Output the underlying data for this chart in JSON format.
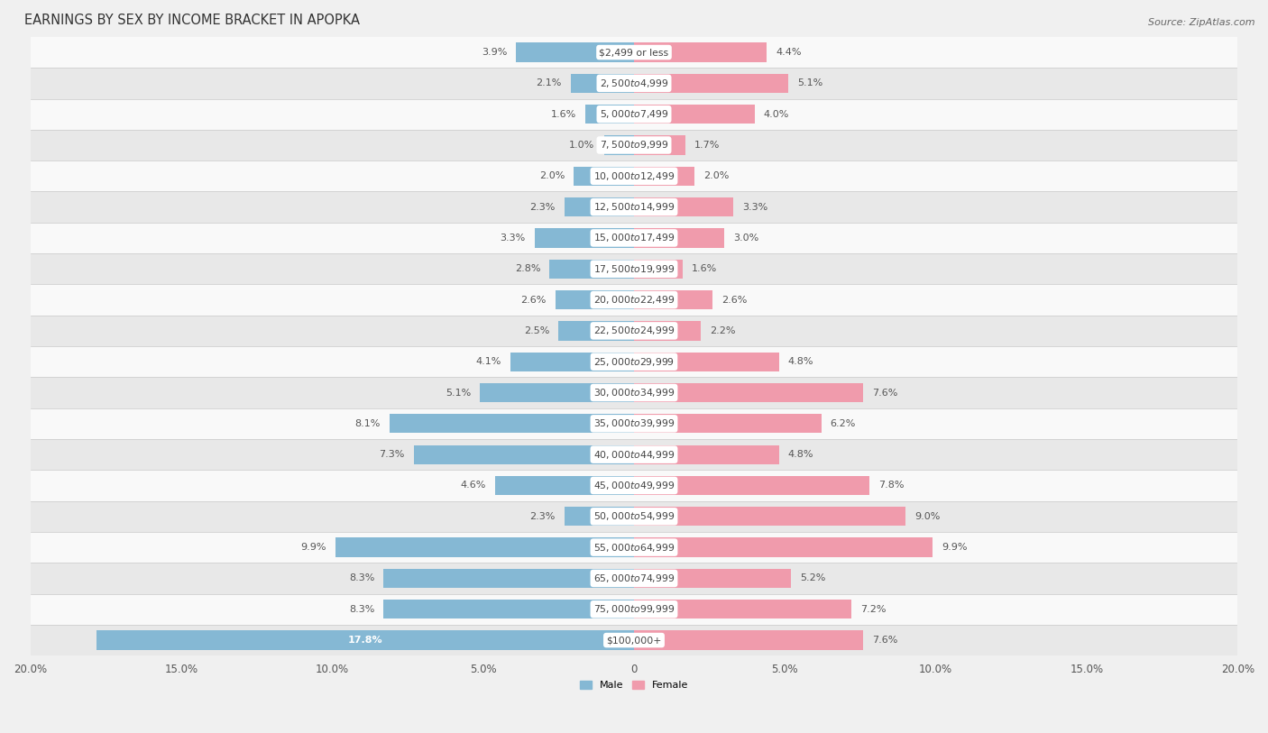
{
  "title": "EARNINGS BY SEX BY INCOME BRACKET IN APOPKA",
  "source": "Source: ZipAtlas.com",
  "categories": [
    "$2,499 or less",
    "$2,500 to $4,999",
    "$5,000 to $7,499",
    "$7,500 to $9,999",
    "$10,000 to $12,499",
    "$12,500 to $14,999",
    "$15,000 to $17,499",
    "$17,500 to $19,999",
    "$20,000 to $22,499",
    "$22,500 to $24,999",
    "$25,000 to $29,999",
    "$30,000 to $34,999",
    "$35,000 to $39,999",
    "$40,000 to $44,999",
    "$45,000 to $49,999",
    "$50,000 to $54,999",
    "$55,000 to $64,999",
    "$65,000 to $74,999",
    "$75,000 to $99,999",
    "$100,000+"
  ],
  "male_values": [
    3.9,
    2.1,
    1.6,
    1.0,
    2.0,
    2.3,
    3.3,
    2.8,
    2.6,
    2.5,
    4.1,
    5.1,
    8.1,
    7.3,
    4.6,
    2.3,
    9.9,
    8.3,
    8.3,
    17.8
  ],
  "female_values": [
    4.4,
    5.1,
    4.0,
    1.7,
    2.0,
    3.3,
    3.0,
    1.6,
    2.6,
    2.2,
    4.8,
    7.6,
    6.2,
    4.8,
    7.8,
    9.0,
    9.9,
    5.2,
    7.2,
    7.6
  ],
  "male_color": "#85b8d4",
  "female_color": "#f09bac",
  "xlim": 20.0,
  "bar_height": 0.62,
  "background_color": "#f0f0f0",
  "row_light_color": "#f9f9f9",
  "row_dark_color": "#e8e8e8",
  "separator_color": "#d0d0d0",
  "title_fontsize": 10.5,
  "label_fontsize": 8.0,
  "tick_fontsize": 8.5,
  "value_fontsize": 8.0,
  "cat_label_fontsize": 7.8
}
